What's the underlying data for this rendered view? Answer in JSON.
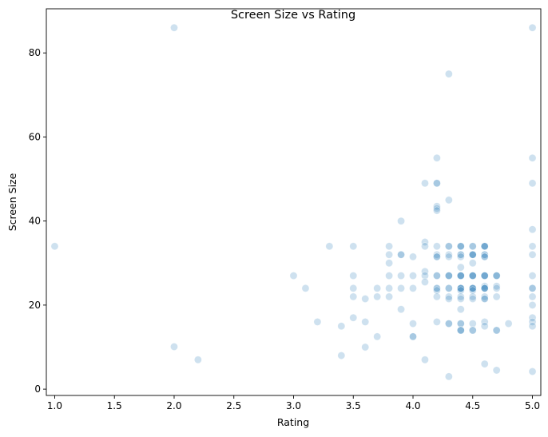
{
  "chart_data": {
    "type": "scatter",
    "title": "Screen Size vs Rating",
    "xlabel": "Rating",
    "ylabel": "Screen Size",
    "xlim": [
      0.93,
      5.07
    ],
    "ylim": [
      -1.5,
      90.5
    ],
    "xticks": [
      1.0,
      1.5,
      2.0,
      2.5,
      3.0,
      3.5,
      4.0,
      4.5,
      5.0
    ],
    "xtick_labels": [
      "1.0",
      "1.5",
      "2.0",
      "2.5",
      "3.0",
      "3.5",
      "4.0",
      "4.5",
      "5.0"
    ],
    "yticks": [
      0,
      20,
      40,
      60,
      80
    ],
    "ytick_labels": [
      "0",
      "20",
      "40",
      "60",
      "80"
    ],
    "grid": false,
    "point_color": "#1f77b4",
    "point_alpha": 0.22,
    "points": [
      [
        1.0,
        34
      ],
      [
        2.0,
        86
      ],
      [
        2.0,
        10.1
      ],
      [
        2.2,
        7
      ],
      [
        3.0,
        27
      ],
      [
        3.1,
        24
      ],
      [
        3.2,
        16
      ],
      [
        3.3,
        34
      ],
      [
        3.4,
        15
      ],
      [
        3.4,
        8
      ],
      [
        3.5,
        34
      ],
      [
        3.5,
        27
      ],
      [
        3.5,
        24
      ],
      [
        3.5,
        22
      ],
      [
        3.5,
        17
      ],
      [
        3.6,
        21.5
      ],
      [
        3.6,
        16
      ],
      [
        3.6,
        10
      ],
      [
        3.7,
        24
      ],
      [
        3.7,
        22
      ],
      [
        3.7,
        12.5
      ],
      [
        3.8,
        34
      ],
      [
        3.8,
        32
      ],
      [
        3.8,
        30
      ],
      [
        3.8,
        27
      ],
      [
        3.8,
        24
      ],
      [
        3.8,
        22
      ],
      [
        3.9,
        40
      ],
      [
        3.9,
        32
      ],
      [
        3.9,
        32
      ],
      [
        3.9,
        27
      ],
      [
        3.9,
        24
      ],
      [
        3.9,
        19
      ],
      [
        4.0,
        31.5
      ],
      [
        4.0,
        27
      ],
      [
        4.0,
        24
      ],
      [
        4.0,
        15.6
      ],
      [
        4.0,
        12.5
      ],
      [
        4.0,
        12.5
      ],
      [
        4.1,
        49
      ],
      [
        4.1,
        35
      ],
      [
        4.1,
        34
      ],
      [
        4.1,
        28
      ],
      [
        4.1,
        27
      ],
      [
        4.1,
        25.5
      ],
      [
        4.1,
        7
      ],
      [
        4.2,
        55
      ],
      [
        4.2,
        49
      ],
      [
        4.2,
        49
      ],
      [
        4.2,
        43.5
      ],
      [
        4.2,
        43
      ],
      [
        4.2,
        42.5
      ],
      [
        4.2,
        34
      ],
      [
        4.2,
        32
      ],
      [
        4.2,
        31.5
      ],
      [
        4.2,
        31.5
      ],
      [
        4.2,
        27
      ],
      [
        4.2,
        27
      ],
      [
        4.2,
        24
      ],
      [
        4.2,
        24
      ],
      [
        4.2,
        23.5
      ],
      [
        4.2,
        22
      ],
      [
        4.2,
        16
      ],
      [
        4.3,
        75
      ],
      [
        4.3,
        45
      ],
      [
        4.3,
        34
      ],
      [
        4.3,
        34
      ],
      [
        4.3,
        32
      ],
      [
        4.3,
        31.5
      ],
      [
        4.3,
        27
      ],
      [
        4.3,
        27
      ],
      [
        4.3,
        27
      ],
      [
        4.3,
        24
      ],
      [
        4.3,
        24
      ],
      [
        4.3,
        22
      ],
      [
        4.3,
        21.5
      ],
      [
        4.3,
        15.6
      ],
      [
        4.3,
        15.6
      ],
      [
        4.3,
        3
      ],
      [
        4.4,
        34
      ],
      [
        4.4,
        34
      ],
      [
        4.4,
        34
      ],
      [
        4.4,
        32
      ],
      [
        4.4,
        32
      ],
      [
        4.4,
        31.5
      ],
      [
        4.4,
        29
      ],
      [
        4.4,
        27
      ],
      [
        4.4,
        27
      ],
      [
        4.4,
        27
      ],
      [
        4.4,
        27
      ],
      [
        4.4,
        24
      ],
      [
        4.4,
        24
      ],
      [
        4.4,
        24
      ],
      [
        4.4,
        24
      ],
      [
        4.4,
        23.5
      ],
      [
        4.4,
        22
      ],
      [
        4.4,
        21.5
      ],
      [
        4.4,
        19
      ],
      [
        4.4,
        15.6
      ],
      [
        4.4,
        15.6
      ],
      [
        4.4,
        14
      ],
      [
        4.4,
        14
      ],
      [
        4.4,
        14
      ],
      [
        4.5,
        34
      ],
      [
        4.5,
        34
      ],
      [
        4.5,
        32
      ],
      [
        4.5,
        32
      ],
      [
        4.5,
        32
      ],
      [
        4.5,
        32
      ],
      [
        4.5,
        30
      ],
      [
        4.5,
        27
      ],
      [
        4.5,
        27
      ],
      [
        4.5,
        27
      ],
      [
        4.5,
        27
      ],
      [
        4.5,
        24
      ],
      [
        4.5,
        24
      ],
      [
        4.5,
        24
      ],
      [
        4.5,
        24
      ],
      [
        4.5,
        23.5
      ],
      [
        4.5,
        22
      ],
      [
        4.5,
        21.5
      ],
      [
        4.5,
        15.6
      ],
      [
        4.5,
        14
      ],
      [
        4.5,
        14
      ],
      [
        4.6,
        34
      ],
      [
        4.6,
        34
      ],
      [
        4.6,
        34
      ],
      [
        4.6,
        34
      ],
      [
        4.6,
        32
      ],
      [
        4.6,
        32
      ],
      [
        4.6,
        31.5
      ],
      [
        4.6,
        31.5
      ],
      [
        4.6,
        27
      ],
      [
        4.6,
        27
      ],
      [
        4.6,
        27
      ],
      [
        4.6,
        27
      ],
      [
        4.6,
        24.5
      ],
      [
        4.6,
        24
      ],
      [
        4.6,
        24
      ],
      [
        4.6,
        24
      ],
      [
        4.6,
        24
      ],
      [
        4.6,
        22
      ],
      [
        4.6,
        21.5
      ],
      [
        4.6,
        21.5
      ],
      [
        4.6,
        16
      ],
      [
        4.6,
        15
      ],
      [
        4.6,
        6
      ],
      [
        4.7,
        27
      ],
      [
        4.7,
        27
      ],
      [
        4.7,
        27
      ],
      [
        4.7,
        24.5
      ],
      [
        4.7,
        24
      ],
      [
        4.7,
        22
      ],
      [
        4.7,
        14
      ],
      [
        4.7,
        14
      ],
      [
        4.7,
        4.5
      ],
      [
        4.8,
        15.6
      ],
      [
        5.0,
        86
      ],
      [
        5.0,
        55
      ],
      [
        5.0,
        49
      ],
      [
        5.0,
        38
      ],
      [
        5.0,
        34
      ],
      [
        5.0,
        32
      ],
      [
        5.0,
        27
      ],
      [
        5.0,
        24
      ],
      [
        5.0,
        24
      ],
      [
        5.0,
        22
      ],
      [
        5.0,
        20
      ],
      [
        5.0,
        17
      ],
      [
        5.0,
        16
      ],
      [
        5.0,
        15
      ],
      [
        5.0,
        4.2
      ]
    ]
  }
}
